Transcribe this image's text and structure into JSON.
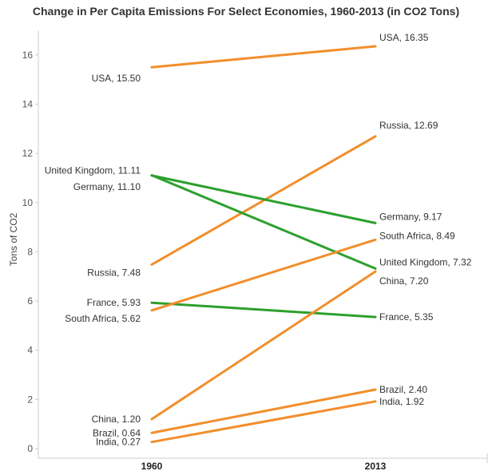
{
  "title": "Change in Per Capita Emissions For Select Economies, 1960-2013 (in CO2 Tons)",
  "chart_data": {
    "type": "line",
    "title": "Change in Per Capita Emissions For Select Economies, 1960-2013 (in CO2 Tons)",
    "xlabel": "",
    "ylabel": "Tons of CO2",
    "categories": [
      "1960",
      "2013"
    ],
    "ylim": [
      0,
      17
    ],
    "yticks": [
      0,
      2,
      4,
      6,
      8,
      10,
      12,
      14,
      16
    ],
    "grid": false,
    "colors": {
      "increase": "#f28e2b",
      "decrease": "#2ca02c"
    },
    "series": [
      {
        "name": "USA",
        "values": [
          15.5,
          16.35
        ],
        "start_label": "USA, 15.50",
        "end_label": "USA, 16.35",
        "color": "#f28e2b"
      },
      {
        "name": "Russia",
        "values": [
          7.48,
          12.69
        ],
        "start_label": "Russia, 7.48",
        "end_label": "Russia, 12.69",
        "color": "#f28e2b"
      },
      {
        "name": "United Kingdom",
        "values": [
          11.11,
          7.32
        ],
        "start_label": "United Kingdom, 11.11",
        "end_label": "United Kingdom, 7.32",
        "color": "#2ca02c"
      },
      {
        "name": "Germany",
        "values": [
          11.1,
          9.17
        ],
        "start_label": "Germany, 11.10",
        "end_label": "Germany, 9.17",
        "color": "#2ca02c"
      },
      {
        "name": "France",
        "values": [
          5.93,
          5.35
        ],
        "start_label": "France, 5.93",
        "end_label": "France, 5.35",
        "color": "#2ca02c"
      },
      {
        "name": "South Africa",
        "values": [
          5.62,
          8.49
        ],
        "start_label": "South Africa, 5.62",
        "end_label": "South Africa, 8.49",
        "color": "#f28e2b"
      },
      {
        "name": "China",
        "values": [
          1.2,
          7.2
        ],
        "start_label": "China, 1.20",
        "end_label": "China, 7.20",
        "color": "#f28e2b"
      },
      {
        "name": "Brazil",
        "values": [
          0.64,
          2.4
        ],
        "start_label": "Brazil, 0.64",
        "end_label": "Brazil, 2.40",
        "color": "#f28e2b"
      },
      {
        "name": "India",
        "values": [
          0.27,
          1.92
        ],
        "start_label": "India, 0.27",
        "end_label": "India, 1.92",
        "color": "#f28e2b"
      }
    ]
  }
}
